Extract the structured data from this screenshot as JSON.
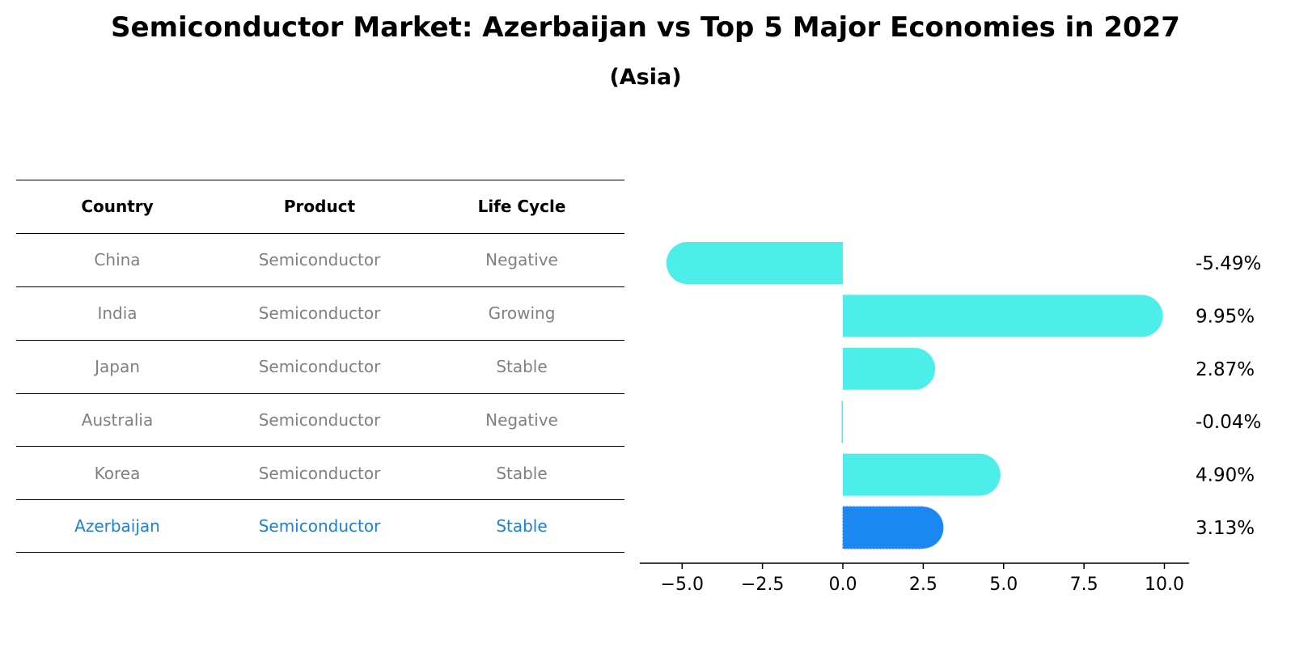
{
  "title": "Semiconductor Market: Azerbaijan vs Top 5 Major Economies in 2027",
  "subtitle": "(Asia)",
  "table": {
    "headers": [
      "Country",
      "Product",
      "Life Cycle"
    ],
    "rows": [
      {
        "country": "China",
        "product": "Semiconductor",
        "life_cycle": "Negative",
        "highlight": false
      },
      {
        "country": "India",
        "product": "Semiconductor",
        "life_cycle": "Growing",
        "highlight": false
      },
      {
        "country": "Japan",
        "product": "Semiconductor",
        "life_cycle": "Stable",
        "highlight": false
      },
      {
        "country": "Australia",
        "product": "Semiconductor",
        "life_cycle": "Negative",
        "highlight": false
      },
      {
        "country": "Korea",
        "product": "Semiconductor",
        "life_cycle": "Stable",
        "highlight": false
      },
      {
        "country": "Azerbaijan",
        "product": "Semiconductor",
        "life_cycle": "Stable",
        "highlight": true
      }
    ]
  },
  "colors": {
    "bar": "#4deeea",
    "highlight_bar": "#1a87f2",
    "highlight_text": "#1a7fd9",
    "muted_text": "#808080"
  },
  "chart_data": {
    "type": "bar",
    "orientation": "horizontal",
    "categories": [
      "China",
      "India",
      "Japan",
      "Australia",
      "Korea",
      "Azerbaijan"
    ],
    "values": [
      -5.49,
      9.95,
      2.87,
      -0.04,
      4.9,
      3.13
    ],
    "value_labels": [
      "-5.49%",
      "9.95%",
      "2.87%",
      "-0.04%",
      "4.90%",
      "3.13%"
    ],
    "xlim": [
      -6.3,
      10.7
    ],
    "xticks": [
      -5.0,
      -2.5,
      0.0,
      2.5,
      5.0,
      7.5,
      10.0
    ],
    "xtick_labels": [
      "−5.0",
      "−2.5",
      "0.0",
      "2.5",
      "5.0",
      "7.5",
      "10.0"
    ],
    "highlight_category": "Azerbaijan",
    "grid": false
  }
}
